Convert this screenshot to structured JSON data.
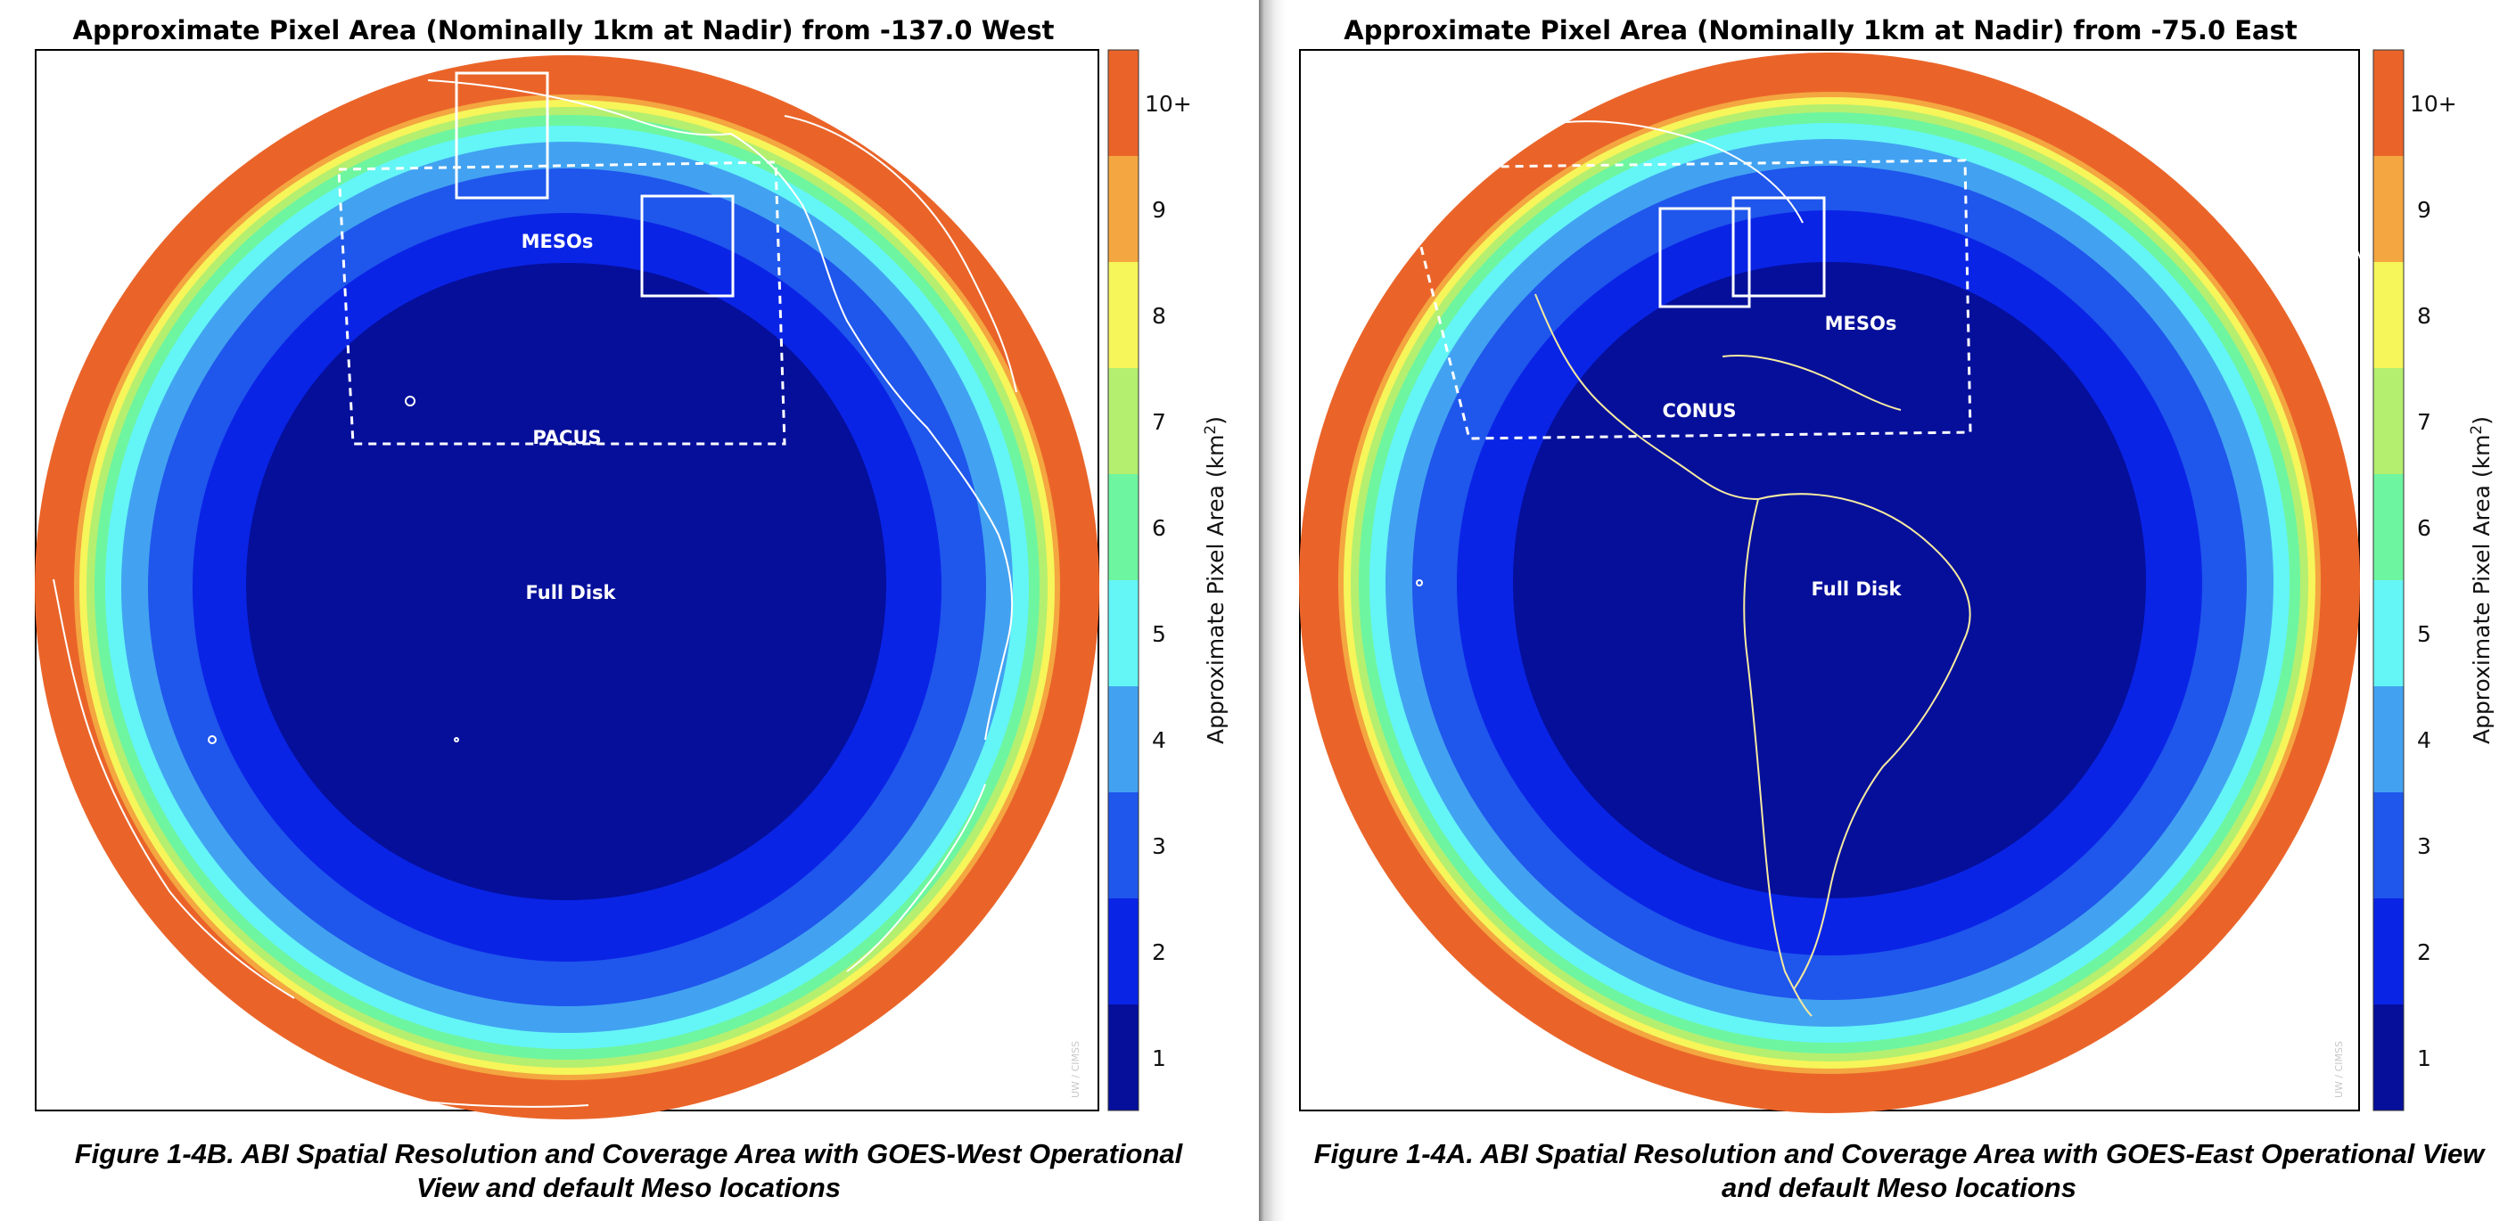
{
  "colors": {
    "ring_1": "#050f9a",
    "ring_2": "#0a24e6",
    "ring_3": "#1f56ec",
    "ring_4": "#42a2f1",
    "ring_5": "#64f5f7",
    "ring_6": "#6ef5a0",
    "ring_7": "#b4ef70",
    "ring_8": "#f6f55a",
    "ring_9": "#f4a640",
    "ring_10": "#ea6429",
    "overlay": "#ffffff",
    "coastline": "#f5e9a0"
  },
  "colorbar": {
    "label": "Approximate Pixel Area (km",
    "label_superscript": "2",
    "label_close": ")",
    "ticks": [
      "1",
      "2",
      "3",
      "4",
      "5",
      "6",
      "7",
      "8",
      "9",
      "10+"
    ]
  },
  "panels": {
    "left": {
      "title": "Approximate Pixel Area (Nominally 1km at Nadir) from -137.0 West",
      "credit": "UW / CIMSS",
      "labels": {
        "mesos": "MESOs",
        "sector": "PACUS",
        "full_disk": "Full Disk"
      },
      "caption_line1": "Figure 1-4B. ABI Spatial Resolution and Coverage Area with GOES-West Operational",
      "caption_line2": "View and default Meso locations"
    },
    "right": {
      "title": "Approximate Pixel Area (Nominally 1km at Nadir) from -75.0 East",
      "credit": "UW / CIMSS",
      "labels": {
        "mesos": "MESOs",
        "sector": "CONUS",
        "full_disk": "Full Disk"
      },
      "caption_line1": "Figure 1-4A. ABI Spatial Resolution and Coverage Area with GOES-East Operational View",
      "caption_line2": "and default Meso locations"
    }
  }
}
